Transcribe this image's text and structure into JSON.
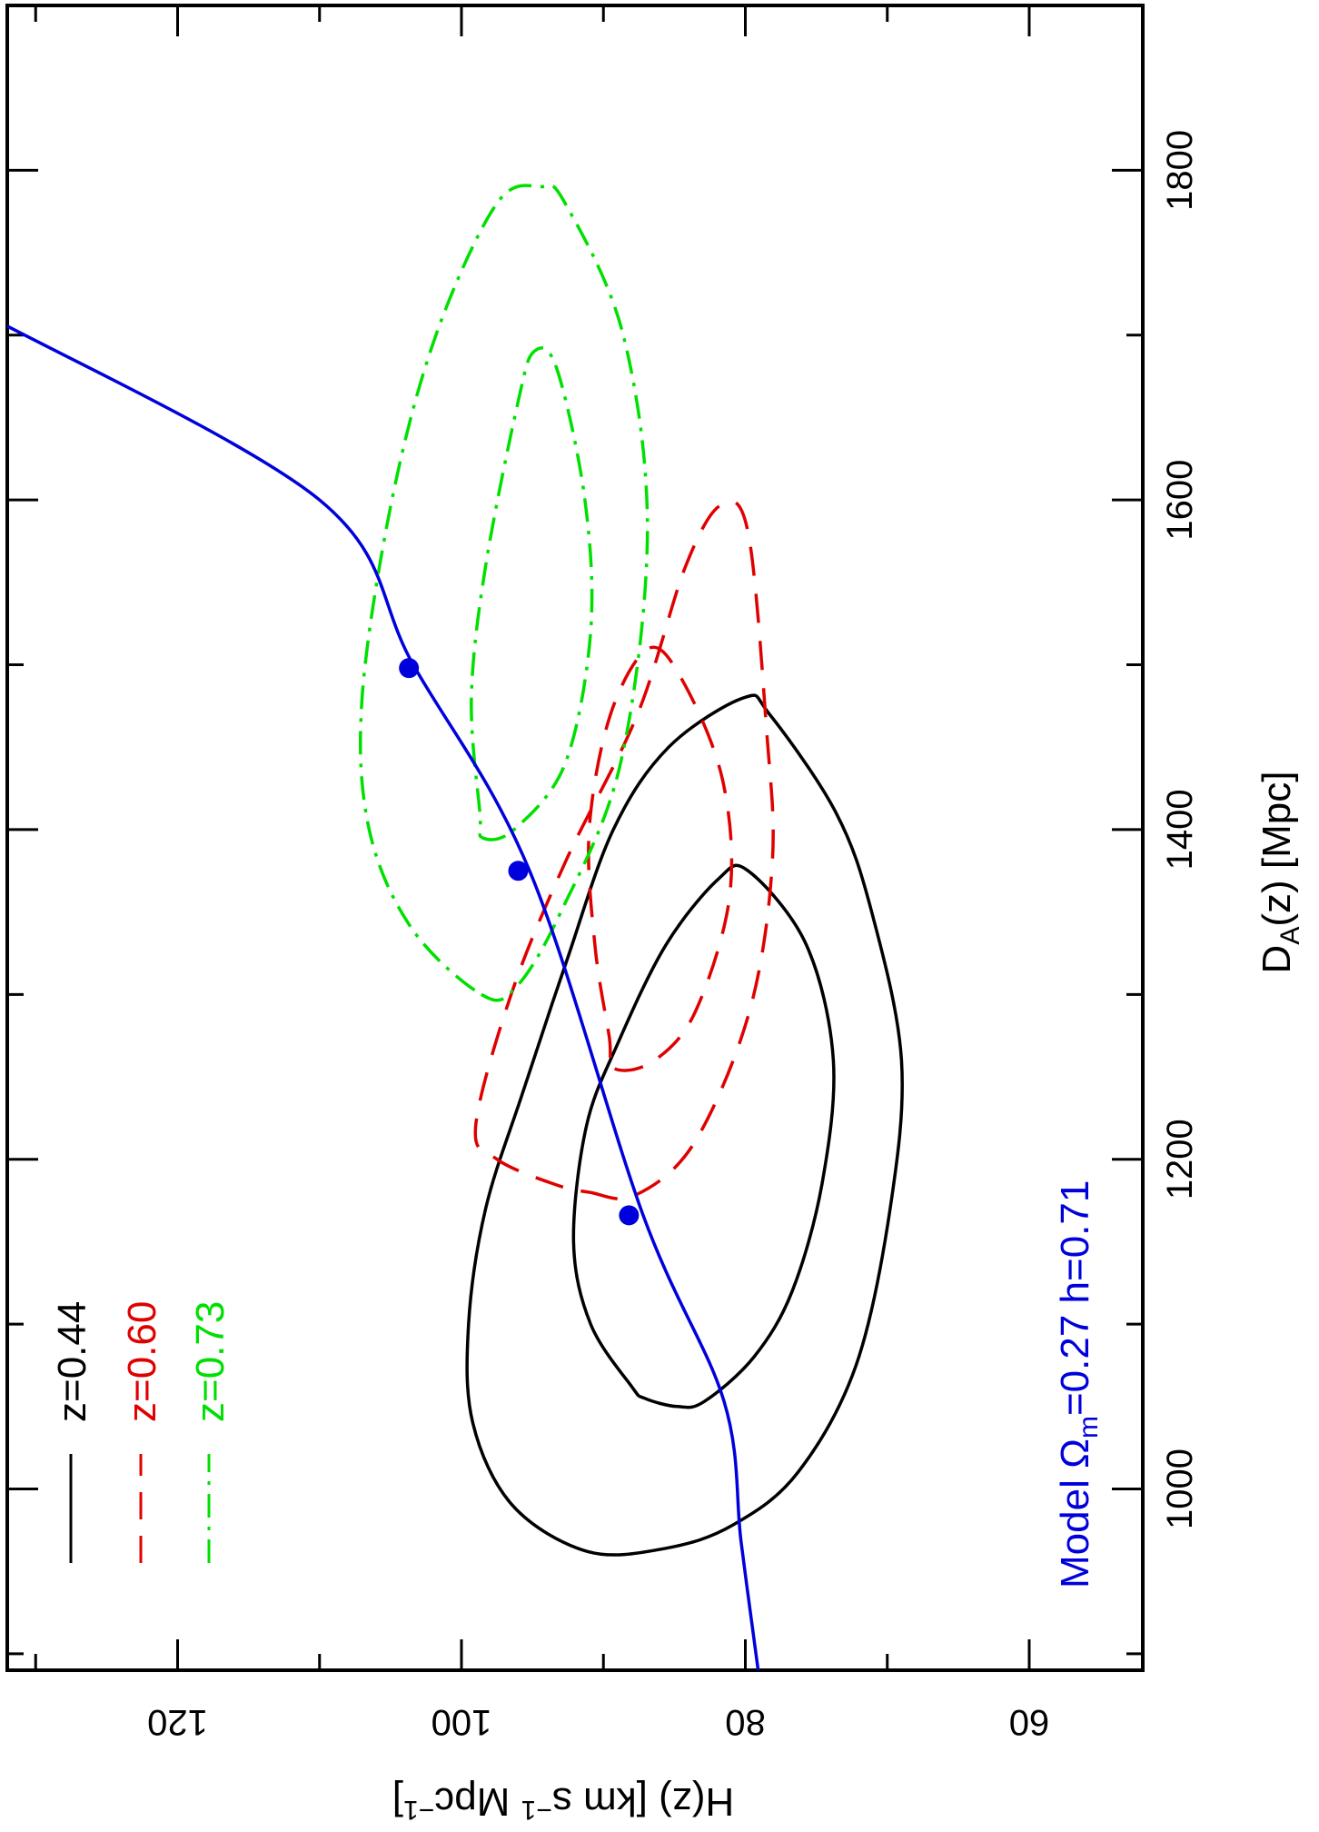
{
  "chart_data": {
    "type": "line",
    "orientation": "rotated 90 degrees clockwise (H(z) along the page vertical, D_A(z) along the page horizontal)",
    "xlabel_main": "D",
    "xlabel_sub": "A",
    "xlabel_rest": "(z) [Mpc]",
    "ylabel_main": "H(z) [km s",
    "ylabel_sup": "−1",
    "ylabel_mid": " Mpc",
    "ylabel_end": "]",
    "x_axis": {
      "quantity": "D_A(z) [Mpc]",
      "range": [
        890,
        1900
      ],
      "ticks": [
        1000,
        1200,
        1400,
        1600,
        1800
      ],
      "tick_labels": [
        "1000",
        "1200",
        "1400",
        "1600",
        "1800"
      ],
      "minor_step": 100
    },
    "y_axis": {
      "quantity": "H(z) [km s^-1 Mpc^-1]",
      "range": [
        52,
        132
      ],
      "direction": "decreasing",
      "ticks": [
        60,
        80,
        100,
        120
      ],
      "tick_labels": [
        "60",
        "80",
        "100",
        "120"
      ],
      "minor_step": 10
    },
    "grid": false,
    "legend": {
      "position": "top-left",
      "entries": [
        {
          "label": "z=0.44",
          "color": "#000000",
          "style": "solid"
        },
        {
          "label": "z=0.60",
          "color": "#e00000",
          "style": "dashed"
        },
        {
          "label": "z=0.73",
          "color": "#00e000",
          "style": "dash-dot"
        }
      ]
    },
    "model_label": {
      "prefix": "Model ",
      "omega": "Ω",
      "omega_sub": "m",
      "rest": "=0.27 h=0.71",
      "color": "#0000dd"
    },
    "series": [
      {
        "name": "z=0.44",
        "color": "#000000",
        "style": "solid",
        "contours": [
          {
            "level": "inner",
            "points": [
              [
                1055,
                87.1
              ],
              [
                1050,
                84.8
              ],
              [
                1053,
                82.9
              ],
              [
                1080,
                79.4
              ],
              [
                1120,
                76.7
              ],
              [
                1185,
                74.6
              ],
              [
                1260,
                73.8
              ],
              [
                1330,
                75.7
              ],
              [
                1375,
                79.8
              ],
              [
                1370,
                81.9
              ],
              [
                1330,
                85.6
              ],
              [
                1270,
                89.0
              ],
              [
                1220,
                91.2
              ],
              [
                1150,
                92.1
              ],
              [
                1100,
                90.9
              ],
              [
                1062,
                88.0
              ],
              [
                1055,
                87.1
              ]
            ]
          },
          {
            "level": "outer",
            "points": [
              [
                962,
                91.1
              ],
              [
                964,
                85.6
              ],
              [
                978,
                80.9
              ],
              [
                1010,
                76.3
              ],
              [
                1075,
                72.2
              ],
              [
                1170,
                69.8
              ],
              [
                1260,
                69.0
              ],
              [
                1350,
                71.1
              ],
              [
                1410,
                73.6
              ],
              [
                1470,
                78.3
              ],
              [
                1480,
                80.1
              ],
              [
                1450,
                85.4
              ],
              [
                1400,
                89.3
              ],
              [
                1320,
                92.6
              ],
              [
                1240,
                95.7
              ],
              [
                1170,
                98.3
              ],
              [
                1100,
                99.5
              ],
              [
                1040,
                99.2
              ],
              [
                990,
                96.4
              ],
              [
                962,
                91.1
              ]
            ]
          }
        ]
      },
      {
        "name": "z=0.60",
        "color": "#e00000",
        "style": "dashed",
        "contours": [
          {
            "level": "inner",
            "points": [
              [
                1255,
                89.2
              ],
              [
                1260,
                86.4
              ],
              [
                1290,
                83.5
              ],
              [
                1360,
                81.1
              ],
              [
                1430,
                81.6
              ],
              [
                1490,
                84.4
              ],
              [
                1510,
                86.8
              ],
              [
                1470,
                89.5
              ],
              [
                1400,
                91.0
              ],
              [
                1330,
                90.6
              ],
              [
                1275,
                89.6
              ],
              [
                1255,
                89.2
              ]
            ]
          },
          {
            "level": "outer",
            "points": [
              [
                1180,
                91.0
              ],
              [
                1178,
                87.8
              ],
              [
                1210,
                83.6
              ],
              [
                1290,
                79.7
              ],
              [
                1380,
                78.1
              ],
              [
                1460,
                78.5
              ],
              [
                1580,
                79.8
              ],
              [
                1597,
                81.7
              ],
              [
                1560,
                84.2
              ],
              [
                1470,
                87.6
              ],
              [
                1380,
                92.7
              ],
              [
                1300,
                96.5
              ],
              [
                1220,
                99.0
              ],
              [
                1200,
                97.5
              ],
              [
                1185,
                93.5
              ],
              [
                1180,
                91.0
              ]
            ]
          }
        ]
      },
      {
        "name": "z=0.73",
        "color": "#00e000",
        "style": "dash-dot",
        "contours": [
          {
            "level": "inner",
            "points": [
              [
                1395,
                98.5
              ],
              [
                1400,
                96.3
              ],
              [
                1440,
                92.7
              ],
              [
                1520,
                90.9
              ],
              [
                1600,
                91.3
              ],
              [
                1680,
                93.3
              ],
              [
                1690,
                94.9
              ],
              [
                1660,
                96.0
              ],
              [
                1560,
                98.3
              ],
              [
                1480,
                99.3
              ],
              [
                1410,
                98.7
              ],
              [
                1395,
                98.5
              ]
            ]
          },
          {
            "level": "outer",
            "points": [
              [
                1300,
                98.6
              ],
              [
                1304,
                96.2
              ],
              [
                1350,
                93.0
              ],
              [
                1440,
                88.8
              ],
              [
                1580,
                86.9
              ],
              [
                1700,
                88.6
              ],
              [
                1780,
                92.7
              ],
              [
                1790,
                94.4
              ],
              [
                1780,
                97.5
              ],
              [
                1700,
                101.8
              ],
              [
                1600,
                104.9
              ],
              [
                1480,
                107.0
              ],
              [
                1400,
                106.5
              ],
              [
                1340,
                103.5
              ],
              [
                1300,
                98.6
              ]
            ]
          }
        ]
      },
      {
        "name": "",
        "color": "#0000dd",
        "style": "solid",
        "points": [
          [
            890,
            79.1
          ],
          [
            968,
            80.3
          ],
          [
            1053,
            81.5
          ],
          [
            1166,
            87.2
          ],
          [
            1375,
            95.2
          ],
          [
            1500,
            103.4
          ],
          [
            1600,
            110.0
          ],
          [
            1710,
            133.0
          ]
        ]
      }
    ],
    "markers": {
      "color": "#0000dd",
      "points": [
        [
          1166,
          88.2
        ],
        [
          1375,
          96.0
        ],
        [
          1498,
          103.7
        ]
      ]
    }
  }
}
